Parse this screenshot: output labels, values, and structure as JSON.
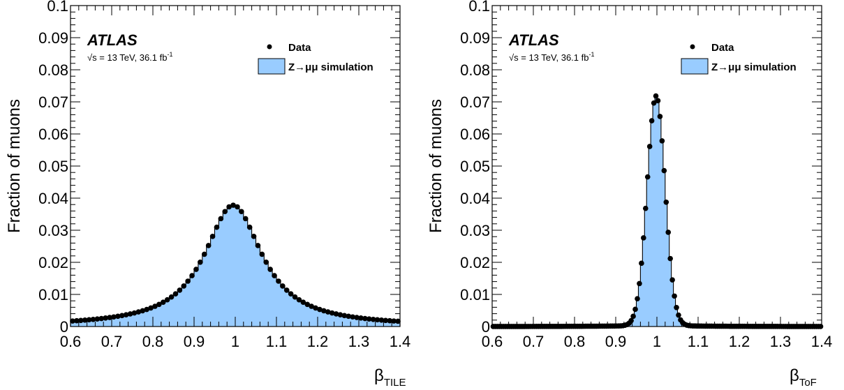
{
  "chart_data": [
    {
      "type": "histogram",
      "panel": "left",
      "experiment": "ATLAS",
      "lumi_prefix": "√s = 13 TeV, 36.1 fb",
      "lumi_sup": "-1",
      "ylabel": "Fraction of muons",
      "xlabel_main": "β",
      "xlabel_sub": "TILE",
      "xlim": [
        0.6,
        1.4
      ],
      "ylim": [
        0,
        0.1
      ],
      "xticks": [
        "0.6",
        "0.7",
        "0.8",
        "0.9",
        "1",
        "1.1",
        "1.2",
        "1.3",
        "1.4"
      ],
      "yticks": [
        "0",
        "0.01",
        "0.02",
        "0.03",
        "0.04",
        "0.05",
        "0.06",
        "0.07",
        "0.08",
        "0.09",
        "0.1"
      ],
      "legend": {
        "data": "Data",
        "sim": "Z→μμ simulation"
      },
      "shape": {
        "form": "cauchy",
        "mean": 0.995,
        "peak": 0.0378,
        "width": 0.085,
        "nbins": 80
      },
      "peak_value": 0.0378,
      "sim_color": "#99ccff"
    },
    {
      "type": "histogram",
      "panel": "right",
      "experiment": "ATLAS",
      "lumi_prefix": "√s = 13 TeV, 36.1 fb",
      "lumi_sup": "-1",
      "ylabel": "Fraction of muons",
      "xlabel_main": "β",
      "xlabel_sub": "ToF",
      "xlim": [
        0.6,
        1.4
      ],
      "ylim": [
        0,
        0.1
      ],
      "xticks": [
        "0.6",
        "0.7",
        "0.8",
        "0.9",
        "1",
        "1.1",
        "1.2",
        "1.3",
        "1.4"
      ],
      "yticks": [
        "0",
        "0.01",
        "0.02",
        "0.03",
        "0.04",
        "0.05",
        "0.06",
        "0.07",
        "0.08",
        "0.09",
        "0.1"
      ],
      "legend": {
        "data": "Data",
        "sim": "Z→μμ simulation"
      },
      "shape": {
        "form": "gauss_tails",
        "mean": 0.998,
        "peak": 0.0715,
        "width": 0.022,
        "nbins": 160
      },
      "peak_value": 0.0715,
      "sim_color": "#99ccff"
    }
  ]
}
